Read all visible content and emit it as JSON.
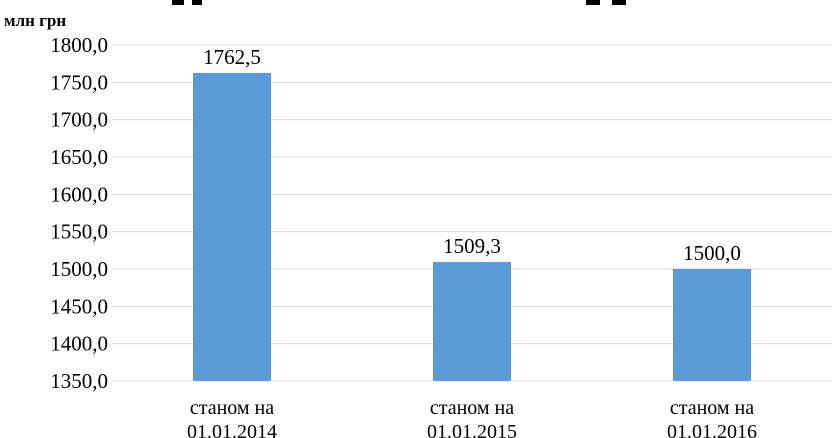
{
  "chart_data": {
    "type": "bar",
    "title": "",
    "ylabel": "млн грн",
    "xlabel": "",
    "ylim": [
      1350,
      1800
    ],
    "yticks": [
      "1800,0",
      "1750,0",
      "1700,0",
      "1650,0",
      "1600,0",
      "1550,0",
      "1500,0",
      "1450,0",
      "1400,0",
      "1350,0"
    ],
    "ytick_values": [
      1800,
      1750,
      1700,
      1650,
      1600,
      1550,
      1500,
      1450,
      1400,
      1350
    ],
    "categories": [
      [
        "станом на",
        "01.01.2014"
      ],
      [
        "станом на",
        "01.01.2015"
      ],
      [
        "станом на",
        "01.01.2016"
      ]
    ],
    "values": [
      1762.5,
      1509.3,
      1500.0
    ],
    "value_labels": [
      "1762,5",
      "1509,3",
      "1500,0"
    ],
    "bar_color": "#5b9bd5",
    "grid": true,
    "legend": "none"
  }
}
